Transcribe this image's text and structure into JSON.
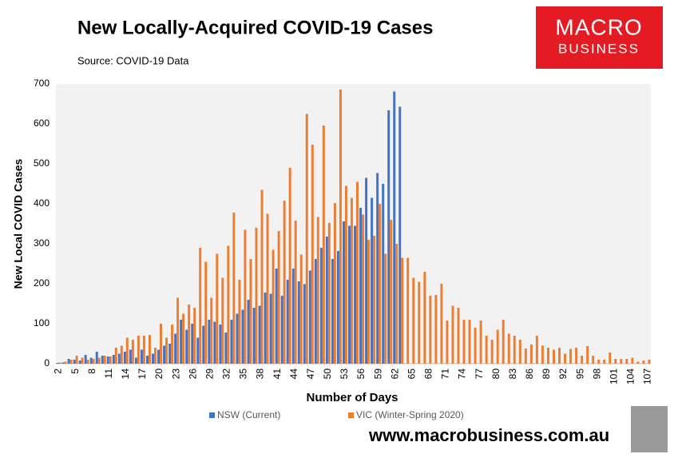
{
  "chart_data": {
    "type": "bar",
    "title": "New Locally-Acquired COVID-19 Cases",
    "subtitle": "Source: COVID-19 Data",
    "x_label": "Number of Days",
    "y_label": "New Local COVID Cases",
    "logo_top": "MACRO",
    "logo_bottom": "BUSINESS",
    "website": "www.macrobusiness.com.au",
    "categories": [
      "2",
      null,
      null,
      "5",
      null,
      null,
      "8",
      null,
      null,
      "11",
      null,
      null,
      "14",
      null,
      null,
      "17",
      null,
      null,
      "20",
      null,
      null,
      "23",
      null,
      null,
      "26",
      null,
      null,
      "29",
      null,
      null,
      "32",
      null,
      null,
      "35",
      null,
      null,
      "38",
      null,
      null,
      "41",
      null,
      null,
      "44",
      null,
      null,
      "47",
      null,
      null,
      "50",
      null,
      null,
      "53",
      null,
      null,
      "56",
      null,
      null,
      "59",
      null,
      null,
      "62",
      null,
      null,
      "65",
      null,
      null,
      "68",
      null,
      null,
      "71",
      null,
      null,
      "74",
      null,
      null,
      "77",
      null,
      null,
      "80",
      null,
      null,
      "83",
      null,
      null,
      "86",
      null,
      null,
      "89",
      null,
      null,
      "92",
      null,
      null,
      "95",
      null,
      null,
      "98",
      null,
      null,
      "101",
      null,
      null,
      "104",
      null,
      null,
      "107"
    ],
    "series": [
      {
        "name": "NSW (Current)",
        "color": "#4472c4",
        "values": [
          2,
          3,
          12,
          10,
          8,
          22,
          15,
          30,
          20,
          18,
          22,
          25,
          30,
          35,
          15,
          35,
          20,
          25,
          35,
          45,
          50,
          75,
          110,
          85,
          100,
          65,
          95,
          110,
          105,
          98,
          78,
          110,
          125,
          135,
          160,
          140,
          145,
          178,
          175,
          238,
          170,
          210,
          238,
          206,
          199,
          233,
          262,
          290,
          318,
          262,
          282,
          356,
          345,
          345,
          390,
          465,
          415,
          477,
          450,
          634,
          681,
          643,
          null,
          null,
          null,
          null,
          null,
          null,
          null,
          null,
          null,
          null,
          null,
          null,
          null,
          null,
          null,
          null,
          null,
          null,
          null,
          null,
          null,
          null,
          null,
          null,
          null,
          null,
          null,
          null,
          null,
          null,
          null,
          null,
          null,
          null,
          null,
          null,
          null,
          null,
          null,
          null,
          null,
          null,
          null,
          null
        ]
      },
      {
        "name": "VIC (Winter-Spring 2020)",
        "color": "#ed7d31",
        "values": [
          3,
          5,
          10,
          20,
          15,
          10,
          12,
          15,
          20,
          18,
          40,
          45,
          65,
          60,
          70,
          70,
          72,
          40,
          100,
          65,
          98,
          165,
          125,
          148,
          140,
          290,
          255,
          165,
          275,
          215,
          295,
          378,
          210,
          335,
          262,
          340,
          435,
          375,
          285,
          332,
          408,
          490,
          358,
          273,
          625,
          548,
          367,
          596,
          352,
          402,
          686,
          445,
          415,
          455,
          373,
          310,
          320,
          400,
          275,
          360,
          300,
          265,
          265,
          215,
          205,
          230,
          170,
          172,
          200,
          108,
          145,
          140,
          110,
          110,
          90,
          108,
          70,
          60,
          85,
          110,
          75,
          70,
          60,
          38,
          48,
          70,
          45,
          40,
          35,
          40,
          25,
          37,
          40,
          20,
          44,
          20,
          10,
          10,
          28,
          12,
          12,
          12,
          15,
          5,
          8,
          10
        ]
      }
    ],
    "ylim": [
      0,
      700
    ],
    "yticks": [
      0,
      100,
      200,
      300,
      400,
      500,
      600,
      700
    ],
    "grid": false
  }
}
